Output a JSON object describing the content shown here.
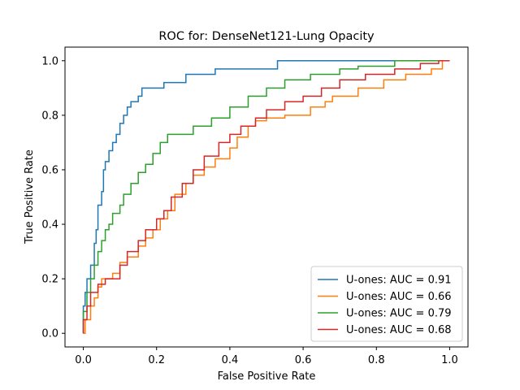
{
  "chart_data": {
    "type": "line",
    "title": "ROC for: DenseNet121-Lung Opacity",
    "xlabel": "False Positive Rate",
    "ylabel": "True Positive Rate",
    "xlim": [
      -0.05,
      1.05
    ],
    "ylim": [
      -0.05,
      1.05
    ],
    "xticks": [
      "0.0",
      "0.2",
      "0.4",
      "0.6",
      "0.8",
      "1.0"
    ],
    "yticks": [
      "0.0",
      "0.2",
      "0.4",
      "0.6",
      "0.8",
      "1.0"
    ],
    "grid": false,
    "legend_position": "lower-right",
    "series": [
      {
        "name": "U-ones: AUC = 0.91",
        "color": "#1f77b4",
        "x": [
          0,
          0,
          0.005,
          0.005,
          0.01,
          0.01,
          0.02,
          0.02,
          0.03,
          0.03,
          0.035,
          0.035,
          0.04,
          0.04,
          0.05,
          0.05,
          0.055,
          0.055,
          0.06,
          0.06,
          0.07,
          0.07,
          0.08,
          0.08,
          0.09,
          0.09,
          0.1,
          0.1,
          0.11,
          0.11,
          0.12,
          0.12,
          0.13,
          0.13,
          0.15,
          0.15,
          0.16,
          0.16,
          0.17,
          0.17,
          0.22,
          0.22,
          0.25,
          0.25,
          0.28,
          0.28,
          0.36,
          0.36,
          0.53,
          0.53,
          0.86,
          0.86,
          1.0
        ],
        "y": [
          0,
          0.1,
          0.1,
          0.15,
          0.15,
          0.2,
          0.2,
          0.25,
          0.25,
          0.33,
          0.33,
          0.38,
          0.38,
          0.47,
          0.47,
          0.52,
          0.52,
          0.6,
          0.6,
          0.63,
          0.63,
          0.67,
          0.67,
          0.7,
          0.7,
          0.73,
          0.73,
          0.77,
          0.77,
          0.8,
          0.8,
          0.83,
          0.83,
          0.85,
          0.85,
          0.87,
          0.87,
          0.9,
          0.9,
          0.9,
          0.9,
          0.92,
          0.92,
          0.92,
          0.92,
          0.95,
          0.95,
          0.97,
          0.97,
          1.0,
          1.0,
          1.0,
          1.0
        ]
      },
      {
        "name": "U-ones: AUC = 0.66",
        "color": "#ff7f0e",
        "x": [
          0,
          0.005,
          0.005,
          0.02,
          0.02,
          0.03,
          0.03,
          0.04,
          0.04,
          0.05,
          0.05,
          0.06,
          0.06,
          0.08,
          0.08,
          0.1,
          0.1,
          0.12,
          0.12,
          0.15,
          0.15,
          0.17,
          0.17,
          0.19,
          0.19,
          0.21,
          0.21,
          0.23,
          0.23,
          0.25,
          0.25,
          0.28,
          0.28,
          0.3,
          0.3,
          0.33,
          0.33,
          0.36,
          0.36,
          0.4,
          0.4,
          0.42,
          0.42,
          0.45,
          0.45,
          0.47,
          0.47,
          0.5,
          0.5,
          0.55,
          0.55,
          0.62,
          0.62,
          0.66,
          0.66,
          0.68,
          0.68,
          0.75,
          0.75,
          0.82,
          0.82,
          0.88,
          0.88,
          0.95,
          0.95,
          0.98,
          0.98,
          1.0
        ],
        "y": [
          0,
          0,
          0.05,
          0.05,
          0.1,
          0.1,
          0.13,
          0.13,
          0.17,
          0.17,
          0.2,
          0.2,
          0.2,
          0.2,
          0.22,
          0.22,
          0.26,
          0.26,
          0.28,
          0.28,
          0.32,
          0.32,
          0.35,
          0.35,
          0.38,
          0.38,
          0.42,
          0.42,
          0.45,
          0.45,
          0.51,
          0.51,
          0.55,
          0.55,
          0.58,
          0.58,
          0.61,
          0.61,
          0.64,
          0.64,
          0.68,
          0.68,
          0.72,
          0.72,
          0.76,
          0.76,
          0.78,
          0.78,
          0.79,
          0.79,
          0.8,
          0.8,
          0.83,
          0.83,
          0.85,
          0.85,
          0.87,
          0.87,
          0.9,
          0.9,
          0.93,
          0.93,
          0.95,
          0.95,
          0.97,
          0.97,
          1.0,
          1.0
        ]
      },
      {
        "name": "U-ones: AUC = 0.79",
        "color": "#2ca02c",
        "x": [
          0,
          0,
          0.01,
          0.01,
          0.02,
          0.02,
          0.03,
          0.03,
          0.04,
          0.04,
          0.05,
          0.05,
          0.06,
          0.06,
          0.07,
          0.07,
          0.08,
          0.08,
          0.1,
          0.1,
          0.11,
          0.11,
          0.13,
          0.13,
          0.15,
          0.15,
          0.17,
          0.17,
          0.19,
          0.19,
          0.21,
          0.21,
          0.23,
          0.23,
          0.3,
          0.3,
          0.35,
          0.35,
          0.4,
          0.4,
          0.45,
          0.45,
          0.5,
          0.5,
          0.55,
          0.55,
          0.62,
          0.62,
          0.7,
          0.7,
          0.75,
          0.75,
          0.85,
          0.85,
          1.0
        ],
        "y": [
          0,
          0.08,
          0.08,
          0.15,
          0.15,
          0.2,
          0.2,
          0.25,
          0.25,
          0.3,
          0.3,
          0.34,
          0.34,
          0.38,
          0.38,
          0.4,
          0.4,
          0.44,
          0.44,
          0.47,
          0.47,
          0.51,
          0.51,
          0.55,
          0.55,
          0.59,
          0.59,
          0.62,
          0.62,
          0.66,
          0.66,
          0.7,
          0.7,
          0.73,
          0.73,
          0.76,
          0.76,
          0.79,
          0.79,
          0.83,
          0.83,
          0.87,
          0.87,
          0.9,
          0.9,
          0.93,
          0.93,
          0.95,
          0.95,
          0.97,
          0.97,
          0.98,
          0.98,
          1.0,
          1.0
        ]
      },
      {
        "name": "U-ones: AUC = 0.68",
        "color": "#d62728",
        "x": [
          0,
          0,
          0.01,
          0.01,
          0.02,
          0.02,
          0.04,
          0.04,
          0.06,
          0.06,
          0.1,
          0.1,
          0.12,
          0.12,
          0.15,
          0.15,
          0.17,
          0.17,
          0.2,
          0.2,
          0.22,
          0.22,
          0.24,
          0.24,
          0.27,
          0.27,
          0.3,
          0.3,
          0.33,
          0.33,
          0.37,
          0.37,
          0.4,
          0.4,
          0.43,
          0.43,
          0.47,
          0.47,
          0.5,
          0.5,
          0.55,
          0.55,
          0.6,
          0.6,
          0.65,
          0.65,
          0.7,
          0.7,
          0.77,
          0.77,
          0.85,
          0.85,
          0.92,
          0.92,
          0.97,
          0.97,
          1.0
        ],
        "y": [
          0,
          0.05,
          0.05,
          0.1,
          0.1,
          0.15,
          0.15,
          0.18,
          0.18,
          0.2,
          0.2,
          0.25,
          0.25,
          0.3,
          0.3,
          0.34,
          0.34,
          0.38,
          0.38,
          0.42,
          0.42,
          0.45,
          0.45,
          0.5,
          0.5,
          0.55,
          0.55,
          0.6,
          0.6,
          0.65,
          0.65,
          0.7,
          0.7,
          0.73,
          0.73,
          0.76,
          0.76,
          0.79,
          0.79,
          0.82,
          0.82,
          0.85,
          0.85,
          0.87,
          0.87,
          0.9,
          0.9,
          0.93,
          0.93,
          0.95,
          0.95,
          0.97,
          0.97,
          0.99,
          0.99,
          1.0,
          1.0
        ]
      }
    ]
  }
}
